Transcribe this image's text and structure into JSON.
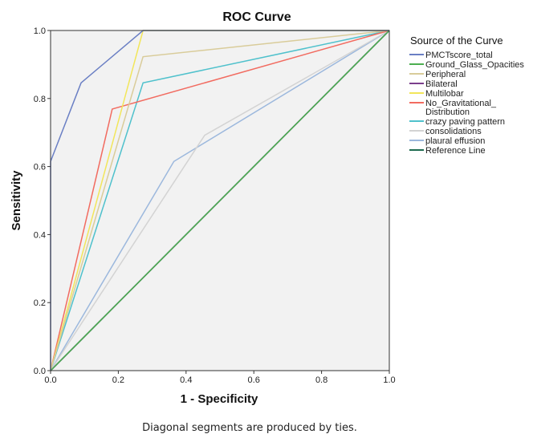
{
  "chart_data": {
    "type": "line",
    "title": "ROC Curve",
    "xlabel": "1 - Specificity",
    "ylabel": "Sensitivity",
    "xlim": [
      0,
      1
    ],
    "ylim": [
      0,
      1
    ],
    "xticks": [
      "0.0",
      "0.2",
      "0.4",
      "0.6",
      "0.8",
      "1.0"
    ],
    "yticks": [
      "0.0",
      "0.2",
      "0.4",
      "0.6",
      "0.8",
      "1.0"
    ],
    "grid": false,
    "legend_title": "Source of the Curve",
    "legend_position": "right",
    "footnote": "Diagonal segments are produced by ties.",
    "series": [
      {
        "name": "PMCTscore_total",
        "color": "#6a7fc4",
        "points": [
          [
            0,
            0
          ],
          [
            0,
            0.615
          ],
          [
            0.09,
            0.846
          ],
          [
            0.273,
            1.0
          ],
          [
            1,
            1
          ]
        ]
      },
      {
        "name": "Ground_Glass_Opacities",
        "color": "#4caf50",
        "points": [
          [
            0,
            0
          ],
          [
            1,
            1
          ]
        ]
      },
      {
        "name": "Peripheral",
        "color": "#d9cc9a",
        "points": [
          [
            0,
            0
          ],
          [
            0.273,
            0.923
          ],
          [
            1,
            1
          ]
        ]
      },
      {
        "name": "Bilateral",
        "color": "#7b3f8c",
        "points": [
          [
            0,
            0
          ],
          [
            1,
            1
          ]
        ]
      },
      {
        "name": "Multilobar",
        "color": "#f2e65a",
        "points": [
          [
            0,
            0
          ],
          [
            0.273,
            1.0
          ],
          [
            1,
            1
          ]
        ]
      },
      {
        "name": "No_Gravitational_\nDistribution",
        "color": "#f26b60",
        "points": [
          [
            0,
            0
          ],
          [
            0.182,
            0.769
          ],
          [
            1,
            1
          ]
        ]
      },
      {
        "name": "crazy paving pattern",
        "color": "#4fc1cc",
        "points": [
          [
            0,
            0
          ],
          [
            0.273,
            0.846
          ],
          [
            1,
            1
          ]
        ]
      },
      {
        "name": "consolidations",
        "color": "#d3d3d3",
        "points": [
          [
            0,
            0
          ],
          [
            0.455,
            0.692
          ],
          [
            1,
            1
          ]
        ]
      },
      {
        "name": "plaural effusion",
        "color": "#9cb8dd",
        "points": [
          [
            0,
            0
          ],
          [
            0.364,
            0.615
          ],
          [
            1,
            1
          ]
        ]
      },
      {
        "name": "Reference Line",
        "color": "#1d6b50",
        "points": [
          [
            0,
            0
          ],
          [
            1,
            1
          ]
        ]
      }
    ]
  }
}
